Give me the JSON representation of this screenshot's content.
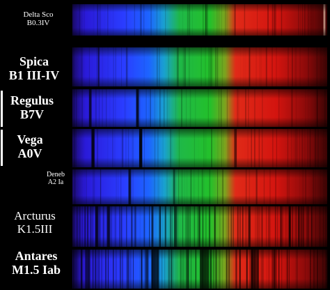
{
  "spectra": [
    {
      "id": "delta-sco",
      "line1": "Delta Sco",
      "line2": "B0.3IV",
      "style": "small",
      "bands": [
        {
          "pos": 0.52,
          "w": 0.012,
          "a": 0.25
        },
        {
          "pos": 0.79,
          "w": 0.01,
          "a": 0.25
        },
        {
          "pos": 0.985,
          "w": 0.008,
          "a": 0.6
        }
      ],
      "density": "low"
    },
    {
      "id": "spica",
      "line1": "Spica",
      "line2": "B1 III-IV",
      "style": "large",
      "bands": [
        {
          "pos": 0.1,
          "w": 0.006,
          "a": 0.55
        },
        {
          "pos": 0.21,
          "w": 0.004,
          "a": 0.35
        },
        {
          "pos": 0.44,
          "w": 0.004,
          "a": 0.35
        }
      ],
      "density": "low"
    },
    {
      "id": "regulus",
      "line1": "Regulus",
      "line2": "B7V",
      "style": "large",
      "bands": [
        {
          "pos": 0.065,
          "w": 0.01,
          "a": 0.7
        },
        {
          "pos": 0.25,
          "w": 0.01,
          "a": 0.8
        }
      ],
      "density": "low"
    },
    {
      "id": "vega",
      "line1": "Vega",
      "line2": "A0V",
      "style": "large",
      "bands": [
        {
          "pos": 0.075,
          "w": 0.012,
          "a": 0.85
        },
        {
          "pos": 0.262,
          "w": 0.012,
          "a": 0.9
        },
        {
          "pos": 0.635,
          "w": 0.01,
          "a": 0.55
        }
      ],
      "density": "low"
    },
    {
      "id": "deneb",
      "line1": "Deneb",
      "line2": "A2 Ia",
      "style": "small",
      "bands": [
        {
          "pos": 0.22,
          "w": 0.01,
          "a": 0.7
        },
        {
          "pos": 0.395,
          "w": 0.006,
          "a": 0.45
        },
        {
          "pos": 0.72,
          "w": 0.006,
          "a": 0.35
        }
      ],
      "density": "low"
    },
    {
      "id": "arcturus",
      "line1": "Arcturus",
      "line2": "K1.5III",
      "style": "medium",
      "bands": [
        {
          "pos": 0.09,
          "w": 0.012,
          "a": 0.7
        },
        {
          "pos": 0.135,
          "w": 0.01,
          "a": 0.65
        },
        {
          "pos": 0.4,
          "w": 0.008,
          "a": 0.6
        }
      ],
      "density": "high"
    },
    {
      "id": "antares",
      "line1": "Antares",
      "line2": "M1.5 Iab",
      "style": "large",
      "bands": [
        {
          "pos": 0.05,
          "w": 0.02,
          "a": 0.6
        },
        {
          "pos": 0.31,
          "w": 0.03,
          "a": 0.7
        },
        {
          "pos": 0.5,
          "w": 0.035,
          "a": 0.7
        },
        {
          "pos": 0.7,
          "w": 0.03,
          "a": 0.6
        }
      ],
      "density": "high"
    }
  ]
}
